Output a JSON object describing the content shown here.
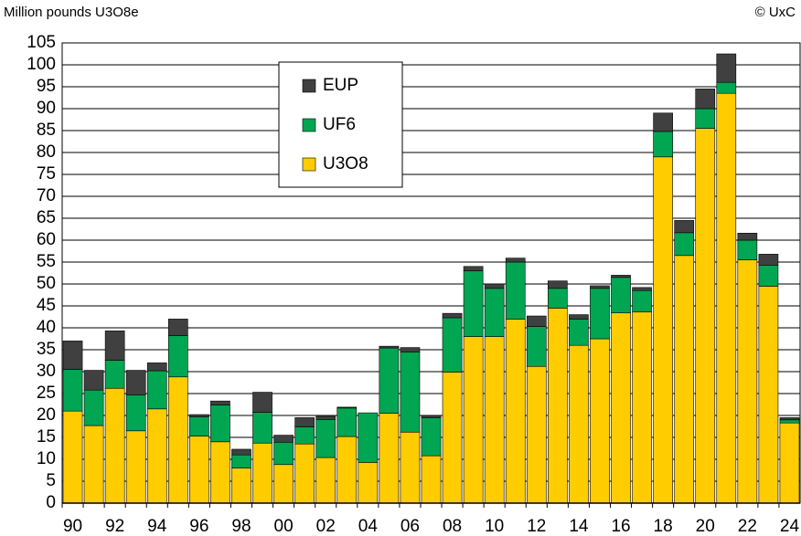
{
  "chart_data": {
    "type": "stacked_bar",
    "title": "Million pounds U3O8e",
    "source": "© UxC",
    "categories": [
      "90",
      null,
      "92",
      null,
      "94",
      null,
      "96",
      null,
      "98",
      null,
      "00",
      null,
      "02",
      null,
      "04",
      null,
      "06",
      null,
      "08",
      null,
      "10",
      null,
      "12",
      null,
      "14",
      null,
      "16",
      null,
      "18",
      null,
      "20",
      null,
      "22",
      null,
      "24"
    ],
    "series": [
      {
        "name": "U3O8",
        "color": "#ffcc00",
        "values": [
          21,
          17.7,
          26.2,
          16.5,
          21.5,
          28.8,
          15.3,
          14,
          8,
          13.7,
          8.8,
          13.5,
          10.4,
          15.2,
          9.3,
          20.5,
          16.2,
          10.8,
          29.9,
          38,
          38,
          42,
          31.2,
          44.5,
          36,
          37.5,
          43.4,
          43.6,
          79,
          56.5,
          85.5,
          93.5,
          55.5,
          49.5,
          18.3
        ]
      },
      {
        "name": "UF6",
        "color": "#00a651",
        "values": [
          9.5,
          8.1,
          6.4,
          8.2,
          8.7,
          9.4,
          4.4,
          8.4,
          3,
          7,
          5.1,
          3.9,
          8.7,
          6.5,
          11.3,
          14.9,
          18.3,
          8.7,
          12.4,
          15,
          11,
          13,
          9.1,
          4.5,
          6,
          11.5,
          8.1,
          4.9,
          5.8,
          5.2,
          4.5,
          2.5,
          4.5,
          4.8,
          0.7
        ]
      },
      {
        "name": "EUP",
        "color": "#404040",
        "values": [
          6.5,
          4.5,
          6.7,
          5.6,
          1.8,
          3.8,
          0.5,
          0.9,
          1.3,
          4.6,
          1.6,
          2.1,
          0.7,
          0.2,
          0,
          0.4,
          1,
          0.5,
          1,
          1,
          1,
          0.9,
          2.4,
          1.7,
          1,
          0.6,
          0.5,
          0.7,
          4.2,
          2.8,
          4.5,
          6.5,
          1.6,
          2.5,
          0.5
        ]
      }
    ],
    "ylim": [
      0,
      105
    ],
    "yticks": [
      0,
      5,
      10,
      15,
      20,
      25,
      30,
      35,
      40,
      45,
      50,
      55,
      60,
      65,
      70,
      75,
      80,
      85,
      90,
      95,
      100,
      105
    ],
    "grid": true
  }
}
